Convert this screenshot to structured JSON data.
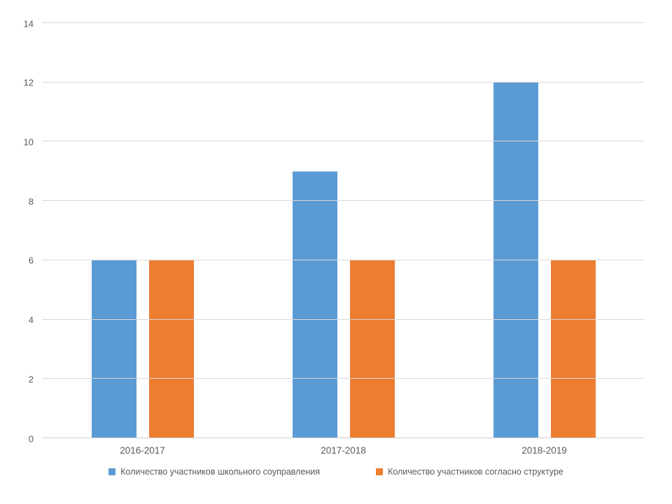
{
  "chart_data": {
    "type": "bar",
    "categories": [
      "2016-2017",
      "2017-2018",
      "2018-2019"
    ],
    "series": [
      {
        "name": "Количество участников школьного соуправления",
        "color": "#5b9bd5",
        "values": [
          6,
          9,
          12
        ]
      },
      {
        "name": "Количество участников согласно структуре",
        "color": "#ed7d31",
        "values": [
          6,
          6,
          6
        ]
      }
    ],
    "title": "",
    "xlabel": "",
    "ylabel": "",
    "ylim": [
      0,
      14
    ],
    "ytick_step": 2,
    "yticks": [
      "0",
      "2",
      "4",
      "6",
      "8",
      "10",
      "12",
      "14"
    ],
    "grid": true,
    "legend_position": "bottom",
    "colors": {
      "gridline": "#d9d9d9",
      "axis_text": "#595959",
      "background": "#ffffff"
    }
  }
}
